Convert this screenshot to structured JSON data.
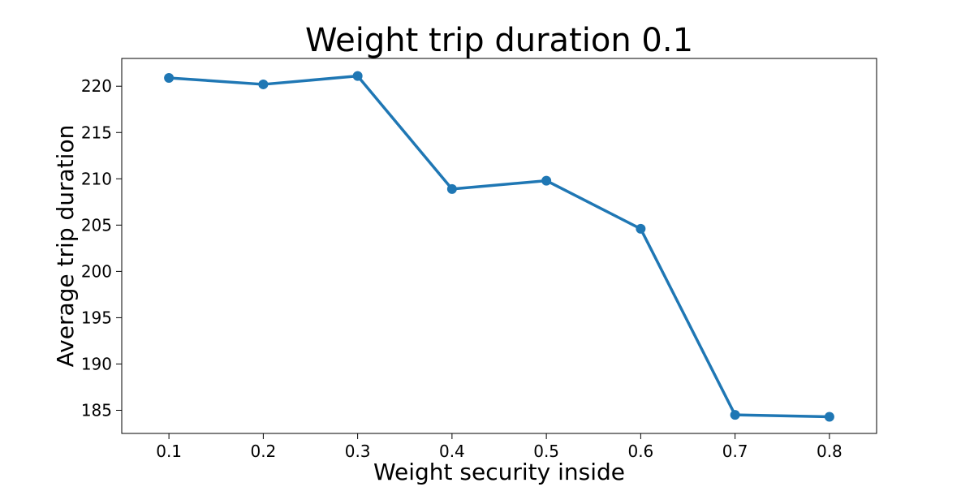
{
  "chart_data": {
    "type": "line",
    "title": "Weight trip duration 0.1",
    "xlabel": "Weight security inside",
    "ylabel": "Average trip duration",
    "x": [
      0.1,
      0.2,
      0.3,
      0.4,
      0.5,
      0.6,
      0.7,
      0.8
    ],
    "x_tick_labels": [
      "0.1",
      "0.2",
      "0.3",
      "0.4",
      "0.5",
      "0.6",
      "0.7",
      "0.8"
    ],
    "y_ticks": [
      185,
      190,
      195,
      200,
      205,
      210,
      215,
      220
    ],
    "y_tick_labels": [
      "185",
      "190",
      "195",
      "200",
      "205",
      "210",
      "215",
      "220"
    ],
    "series": [
      {
        "values": [
          220.9,
          220.2,
          221.1,
          208.9,
          209.8,
          204.6,
          184.5,
          184.3
        ],
        "color": "#1f77b4",
        "marker": "circle"
      }
    ],
    "xlim": [
      0.05,
      0.85
    ],
    "ylim": [
      182.5,
      223.0
    ],
    "grid": false,
    "legend": "none"
  }
}
